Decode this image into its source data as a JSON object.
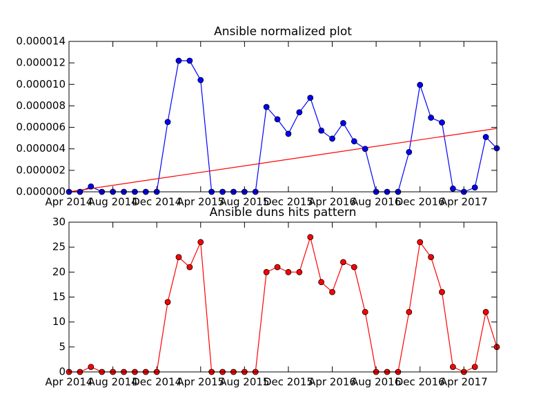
{
  "chart_data": [
    {
      "type": "line",
      "title": "Ansible normalized plot",
      "categories": [
        "Apr 2014",
        null,
        null,
        null,
        "Aug 2014",
        null,
        null,
        null,
        "Dec 2014",
        null,
        null,
        null,
        "Apr 2015",
        null,
        null,
        null,
        "Aug 2015",
        null,
        null,
        null,
        "Dec 2015",
        null,
        null,
        null,
        "Apr 2016",
        null,
        null,
        null,
        "Aug 2016",
        null,
        null,
        null,
        "Dec 2016",
        null,
        null,
        null,
        "Apr 2017",
        null,
        null,
        null
      ],
      "values": [
        0,
        0,
        5e-07,
        0,
        0,
        0,
        0,
        0,
        0,
        6.5e-06,
        1.22e-05,
        1.22e-05,
        1.04e-05,
        0,
        0,
        0,
        0,
        0,
        7.9e-06,
        6.75e-06,
        5.4e-06,
        7.4e-06,
        8.75e-06,
        5.7e-06,
        4.95e-06,
        6.4e-06,
        4.7e-06,
        4e-06,
        0,
        0,
        0,
        3.7e-06,
        9.95e-06,
        6.9e-06,
        6.45e-06,
        3e-07,
        0,
        4e-07,
        5.1e-06,
        4.05e-06
      ],
      "color": "#0000ff",
      "trend": {
        "color": "#ff0000",
        "values": [
          0,
          5.9e-06
        ]
      },
      "ylim": [
        0,
        1.4e-05
      ],
      "yticks": [
        {
          "value": 0,
          "label": "0.000000"
        },
        {
          "value": 2e-06,
          "label": "0.000002"
        },
        {
          "value": 4e-06,
          "label": "0.000004"
        },
        {
          "value": 6e-06,
          "label": "0.000006"
        },
        {
          "value": 8e-06,
          "label": "0.000008"
        },
        {
          "value": 1e-05,
          "label": "0.000010"
        },
        {
          "value": 1.2e-05,
          "label": "0.000012"
        },
        {
          "value": 1.4e-05,
          "label": "0.000014"
        }
      ],
      "grid": false
    },
    {
      "type": "line",
      "title": "Ansible duns hits pattern",
      "categories": [
        "Apr 2014",
        null,
        null,
        null,
        "Aug 2014",
        null,
        null,
        null,
        "Dec 2014",
        null,
        null,
        null,
        "Apr 2015",
        null,
        null,
        null,
        "Aug 2015",
        null,
        null,
        null,
        "Dec 2015",
        null,
        null,
        null,
        "Apr 2016",
        null,
        null,
        null,
        "Aug 2016",
        null,
        null,
        null,
        "Dec 2016",
        null,
        null,
        null,
        "Apr 2017",
        null,
        null,
        null
      ],
      "values": [
        0,
        0,
        1,
        0,
        0,
        0,
        0,
        0,
        0,
        14,
        23,
        21,
        26,
        0,
        0,
        0,
        0,
        0,
        20,
        21,
        20,
        20,
        27,
        18,
        16,
        22,
        21,
        12,
        0,
        0,
        0,
        12,
        26,
        23,
        16,
        1,
        0,
        1,
        12,
        5
      ],
      "color": "#ff0000",
      "ylim": [
        0,
        30
      ],
      "yticks": [
        0,
        5,
        10,
        15,
        20,
        25,
        30
      ],
      "grid": false
    }
  ]
}
